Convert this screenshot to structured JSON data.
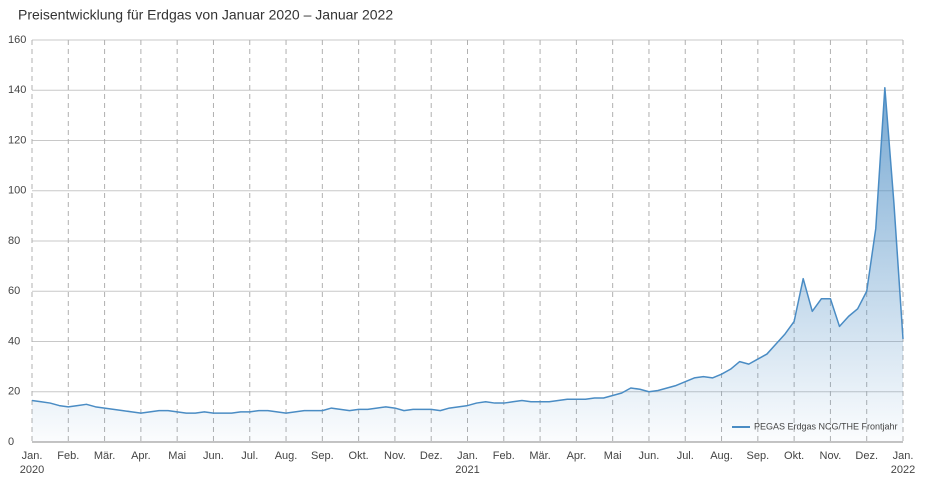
{
  "chart_data": {
    "type": "area-line",
    "title": "Preisentwicklung für Erdgas von Januar 2020 – Januar 2022",
    "categories": [
      "Jan.",
      null,
      null,
      null,
      "Feb.",
      null,
      null,
      null,
      "Mär.",
      null,
      null,
      null,
      "Apr.",
      null,
      null,
      null,
      "Mai",
      null,
      null,
      null,
      "Jun.",
      null,
      null,
      null,
      "Jul.",
      null,
      null,
      null,
      "Aug.",
      null,
      null,
      null,
      "Sep.",
      null,
      null,
      null,
      "Okt.",
      null,
      null,
      null,
      "Nov.",
      null,
      null,
      null,
      "Dez.",
      null,
      null,
      null,
      "Jan.",
      null,
      null,
      null,
      "Feb.",
      null,
      null,
      null,
      "Mär.",
      null,
      null,
      null,
      "Apr.",
      null,
      null,
      null,
      "Mai",
      null,
      null,
      null,
      "Jun.",
      null,
      null,
      null,
      "Jul.",
      null,
      null,
      null,
      "Aug.",
      null,
      null,
      null,
      "Sep.",
      null,
      null,
      null,
      "Okt.",
      null,
      null,
      null,
      "Nov.",
      null,
      null,
      null,
      "Dez.",
      null,
      null,
      null,
      "Jan."
    ],
    "category_years": [
      "2020",
      null,
      null,
      null,
      null,
      null,
      null,
      null,
      null,
      null,
      null,
      null,
      null,
      null,
      null,
      null,
      null,
      null,
      null,
      null,
      null,
      null,
      null,
      null,
      null,
      null,
      null,
      null,
      null,
      null,
      null,
      null,
      null,
      null,
      null,
      null,
      null,
      null,
      null,
      null,
      null,
      null,
      null,
      null,
      null,
      null,
      null,
      null,
      "2021",
      null,
      null,
      null,
      null,
      null,
      null,
      null,
      null,
      null,
      null,
      null,
      null,
      null,
      null,
      null,
      null,
      null,
      null,
      null,
      null,
      null,
      null,
      null,
      null,
      null,
      null,
      null,
      null,
      null,
      null,
      null,
      null,
      null,
      null,
      null,
      null,
      null,
      null,
      null,
      null,
      null,
      null,
      null,
      null,
      null,
      null,
      null,
      "2022"
    ],
    "series": [
      {
        "name": "PEGAS Erdgas NCG/THE Frontjahr",
        "color": "#4a8cc4",
        "values": [
          16.5,
          16,
          15.5,
          14.5,
          14,
          14.5,
          15,
          14,
          13.5,
          13,
          12.5,
          12,
          11.5,
          12,
          12.5,
          12.5,
          12,
          11.5,
          11.5,
          12,
          11.5,
          11.5,
          11.5,
          12,
          12,
          12.5,
          12.5,
          12,
          11.5,
          12,
          12.5,
          12.5,
          12.5,
          13.5,
          13,
          12.5,
          13,
          13,
          13.5,
          14,
          13.5,
          12.5,
          13,
          13,
          13,
          12.5,
          13.5,
          14,
          14.5,
          15.5,
          16,
          15.5,
          15.5,
          16,
          16.5,
          16,
          16,
          16,
          16.5,
          17,
          17,
          17,
          17.5,
          17.5,
          18.5,
          19.5,
          21.5,
          21,
          20,
          20.5,
          21.5,
          22.5,
          24,
          25.5,
          26,
          25.5,
          27,
          29,
          32,
          31,
          33,
          35,
          39,
          43,
          48,
          65,
          52,
          57,
          57,
          46,
          50,
          53,
          60,
          85,
          141,
          95,
          41
        ]
      }
    ],
    "ylim": [
      0,
      160
    ],
    "yticks": [
      0,
      20,
      40,
      60,
      80,
      100,
      120,
      140,
      160
    ],
    "grid": true
  }
}
